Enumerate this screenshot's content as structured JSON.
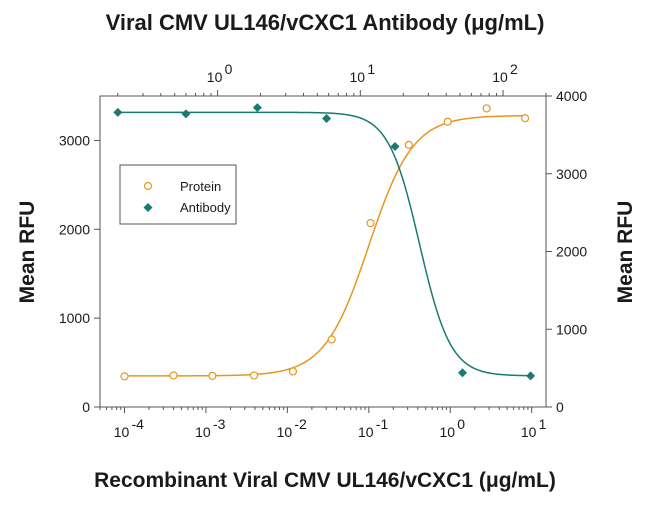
{
  "chart_data": {
    "type": "scatter",
    "title_top": "Viral CMV UL146/vCXC1 Antibody (μg/mL)",
    "xlabel": "Recombinant Viral CMV UL146/vCXC1 (μg/mL)",
    "ylabel_left": "Mean RFU",
    "ylabel_right": "Mean RFU",
    "x_scale": "log",
    "x_bottom_range": [
      5e-05,
      15
    ],
    "x_top_range": [
      0.15,
      200
    ],
    "y_left_range": [
      0,
      3500
    ],
    "y_right_range": [
      0,
      4000
    ],
    "x_bottom_ticks": [
      {
        "base": "10",
        "exp": "-4",
        "value": 0.0001
      },
      {
        "base": "10",
        "exp": "-3",
        "value": 0.001
      },
      {
        "base": "10",
        "exp": "-2",
        "value": 0.01
      },
      {
        "base": "10",
        "exp": "-1",
        "value": 0.1
      },
      {
        "base": "10",
        "exp": "0",
        "value": 1
      },
      {
        "base": "10",
        "exp": "1",
        "value": 10
      }
    ],
    "x_top_ticks": [
      {
        "base": "10",
        "exp": "0",
        "value": 1
      },
      {
        "base": "10",
        "exp": "1",
        "value": 10
      },
      {
        "base": "10",
        "exp": "2",
        "value": 100
      }
    ],
    "y_left_ticks": [
      "0",
      "1000",
      "2000",
      "3000"
    ],
    "y_right_ticks": [
      "0",
      "1000",
      "2000",
      "3000",
      "4000"
    ],
    "series": [
      {
        "name": "Protein",
        "axis": "bottom-left",
        "marker": "circle",
        "color": "#E8961E",
        "points": [
          {
            "x": 0.0001,
            "y": 345
          },
          {
            "x": 0.0004,
            "y": 355
          },
          {
            "x": 0.0012,
            "y": 350
          },
          {
            "x": 0.0039,
            "y": 355
          },
          {
            "x": 0.0117,
            "y": 400
          },
          {
            "x": 0.035,
            "y": 760
          },
          {
            "x": 0.105,
            "y": 2070
          },
          {
            "x": 0.31,
            "y": 2950
          },
          {
            "x": 0.93,
            "y": 3210
          },
          {
            "x": 2.8,
            "y": 3360
          },
          {
            "x": 8.3,
            "y": 3250
          }
        ],
        "fit": {
          "bottom": 350,
          "top": 3280,
          "ec50": 0.1,
          "hill": 1.6
        }
      },
      {
        "name": "Antibody",
        "axis": "top-right",
        "marker": "diamond",
        "color": "#1A7A72",
        "points": [
          {
            "x": 0.2,
            "y": 3790
          },
          {
            "x": 0.6,
            "y": 3770
          },
          {
            "x": 1.9,
            "y": 3850
          },
          {
            "x": 5.8,
            "y": 3710
          },
          {
            "x": 17.5,
            "y": 3350
          },
          {
            "x": 52,
            "y": 440
          },
          {
            "x": 156,
            "y": 400
          }
        ],
        "fit": {
          "bottom": 400,
          "top": 3790,
          "ic50": 26,
          "hill": 4
        }
      }
    ],
    "legend_position": "upper-left",
    "grid": false
  }
}
